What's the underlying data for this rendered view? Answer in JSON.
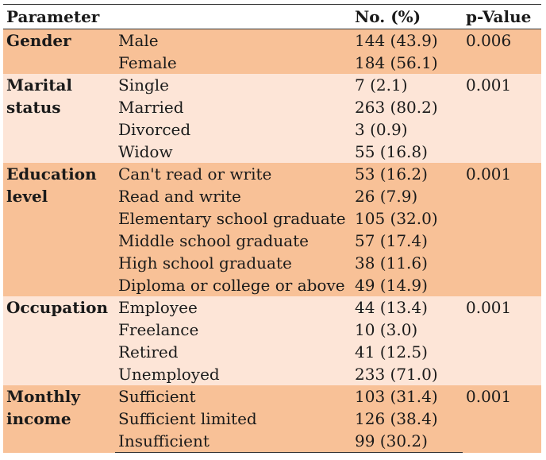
{
  "header": {
    "param": "Parameter",
    "category": "",
    "count": "No. (%)",
    "pvalue": "p-Value"
  },
  "colors": {
    "dark_band": "#f8c197",
    "light_band": "#fde5d7",
    "rule": "#333333"
  },
  "groups": [
    {
      "label": "Gender",
      "pvalue": "0.006",
      "rows": [
        {
          "category": "Male",
          "count": "144 (43.9)"
        },
        {
          "category": "Female",
          "count": "184 (56.1)"
        }
      ]
    },
    {
      "label": "Marital status",
      "pvalue": "0.001",
      "rows": [
        {
          "category": "Single",
          "count": "7 (2.1)"
        },
        {
          "category": "Married",
          "count": "263 (80.2)"
        },
        {
          "category": "Divorced",
          "count": "3 (0.9)"
        },
        {
          "category": "Widow",
          "count": "55 (16.8)"
        }
      ]
    },
    {
      "label": "Education level",
      "pvalue": "0.001",
      "rows": [
        {
          "category": "Can't read or write",
          "count": "53 (16.2)"
        },
        {
          "category": "Read and write",
          "count": "26 (7.9)"
        },
        {
          "category": "Elementary school graduate",
          "count": "105 (32.0)"
        },
        {
          "category": "Middle school graduate",
          "count": "57 (17.4)"
        },
        {
          "category": "High school graduate",
          "count": "38 (11.6)"
        },
        {
          "category": "Diploma or college or above",
          "count": "49 (14.9)"
        }
      ]
    },
    {
      "label": "Occupation",
      "pvalue": "0.001",
      "rows": [
        {
          "category": "Employee",
          "count": "44 (13.4)"
        },
        {
          "category": "Freelance",
          "count": "10 (3.0)"
        },
        {
          "category": "Retired",
          "count": "41 (12.5)"
        },
        {
          "category": "Unemployed",
          "count": "233 (71.0)"
        }
      ]
    },
    {
      "label": "Monthly income",
      "pvalue": "0.001",
      "rows": [
        {
          "category": "Sufficient",
          "count": "103 (31.4)"
        },
        {
          "category": "Sufficient limited",
          "count": "126 (38.4)"
        },
        {
          "category": "Insufficient",
          "count": "99 (30.2)"
        }
      ]
    }
  ]
}
